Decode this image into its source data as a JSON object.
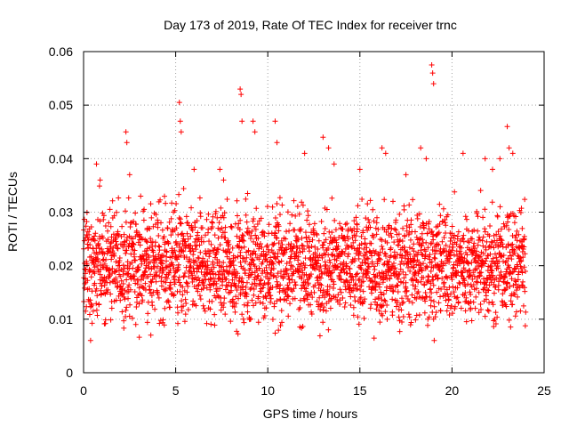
{
  "chart_data": {
    "type": "scatter",
    "title": "Day 173 of 2019, Rate Of TEC Index for receiver trnc",
    "xlabel": "GPS time / hours",
    "ylabel": "ROTI / TECUs",
    "xlim": [
      0,
      25
    ],
    "ylim": [
      0,
      0.06
    ],
    "x_ticks": [
      0,
      5,
      10,
      15,
      20,
      25
    ],
    "x_tick_labels": [
      "0",
      "5",
      "10",
      "15",
      "20",
      "25"
    ],
    "y_ticks": [
      0,
      0.01,
      0.02,
      0.03,
      0.04,
      0.05,
      0.06
    ],
    "y_tick_labels": [
      "0",
      "0.01",
      "0.02",
      "0.03",
      "0.04",
      "0.05",
      "0.06"
    ],
    "grid": true,
    "marker": "+",
    "color": "#ff0000",
    "series": [
      {
        "name": "ROTI",
        "x_range": [
          0,
          24
        ],
        "typical_range": [
          0.008,
          0.03
        ],
        "x": [
          0.7,
          0.9,
          2.3,
          2.35,
          2.5,
          3.1,
          5.2,
          5.3,
          5.25,
          6.0,
          7.4,
          7.6,
          8.5,
          8.55,
          8.6,
          9.2,
          9.3,
          10.4,
          10.5,
          12.0,
          13.0,
          13.3,
          13.6,
          15.0,
          16.2,
          16.4,
          17.5,
          18.3,
          18.6,
          18.9,
          18.95,
          19.0,
          20.6,
          21.8,
          22.2,
          22.6,
          23.0,
          23.1,
          23.3
        ],
        "y": [
          0.039,
          0.036,
          0.045,
          0.043,
          0.037,
          0.033,
          0.0505,
          0.045,
          0.047,
          0.038,
          0.038,
          0.036,
          0.053,
          0.052,
          0.047,
          0.047,
          0.045,
          0.047,
          0.043,
          0.041,
          0.044,
          0.042,
          0.039,
          0.038,
          0.042,
          0.041,
          0.037,
          0.042,
          0.04,
          0.0575,
          0.056,
          0.054,
          0.041,
          0.04,
          0.038,
          0.04,
          0.046,
          0.042,
          0.041
        ]
      }
    ]
  }
}
